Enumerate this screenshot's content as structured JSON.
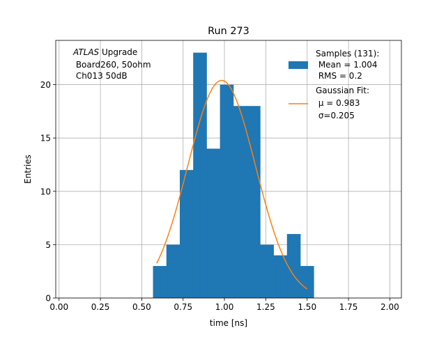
{
  "chart_data": {
    "type": "bar",
    "title": "Run 273",
    "xlabel": "time [ns]",
    "ylabel": "Entries",
    "xlim": [
      -0.02,
      2.07
    ],
    "ylim": [
      0,
      24.15
    ],
    "grid": true,
    "x_ticks": [
      0.0,
      0.25,
      0.5,
      0.75,
      1.0,
      1.25,
      1.5,
      1.75,
      2.0
    ],
    "x_tick_labels": [
      "0.00",
      "0.25",
      "0.50",
      "0.75",
      "1.00",
      "1.25",
      "1.50",
      "1.75",
      "2.00"
    ],
    "y_ticks": [
      0,
      5,
      10,
      15,
      20
    ],
    "y_tick_labels": [
      "0",
      "5",
      "10",
      "15",
      "20"
    ],
    "histogram": {
      "edges": [
        0.568,
        0.649,
        0.73,
        0.811,
        0.892,
        0.973,
        1.054,
        1.135,
        1.216,
        1.297,
        1.378,
        1.459,
        1.54
      ],
      "counts": [
        3,
        5,
        12,
        23,
        14,
        20,
        18,
        18,
        5,
        4,
        6,
        3
      ],
      "color": "#1f77b4"
    },
    "fit": {
      "amplitude": 20.4,
      "mu": 0.983,
      "sigma": 0.205,
      "x_range": [
        0.59,
        1.5
      ],
      "color": "#ff7f0e"
    },
    "annotation": {
      "prefix_italic": "ATLAS",
      "prefix_rest": " Upgrade",
      "line2": " Board260, 50ohm",
      "line3": " Ch013 50dB"
    },
    "legend": {
      "location": "upper right",
      "entries": [
        {
          "lines": [
            "Samples (131):",
            " Mean = 1.004",
            " RMS = 0.2"
          ],
          "kind": "patch"
        },
        {
          "lines": [
            "Gaussian Fit:",
            " μ = 0.983",
            " σ=0.205"
          ],
          "kind": "line"
        }
      ]
    }
  }
}
